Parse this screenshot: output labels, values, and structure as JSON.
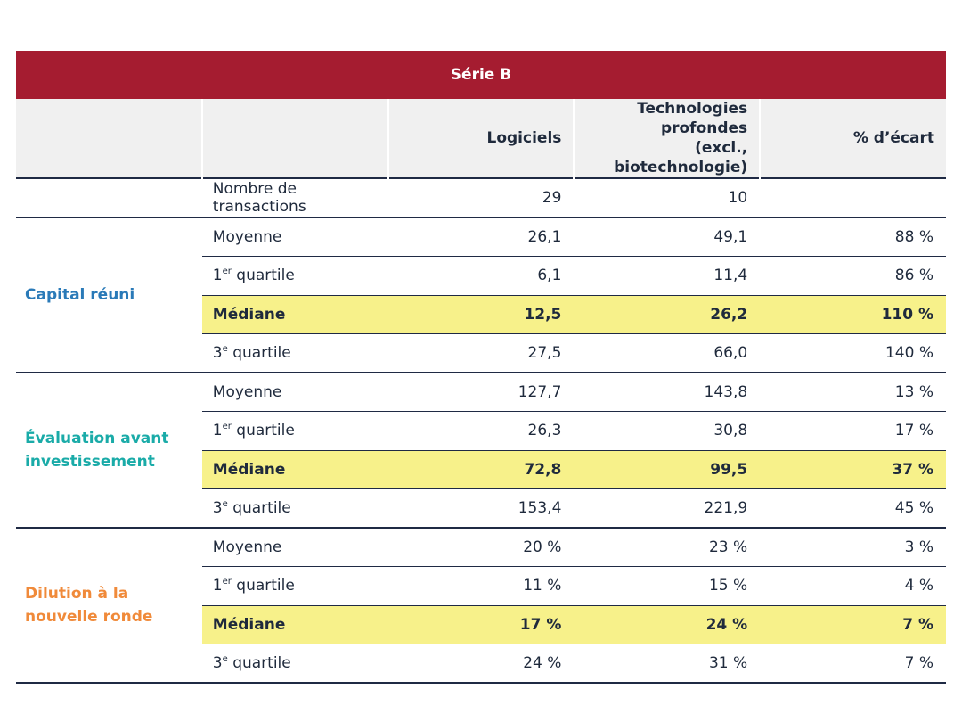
{
  "title": "Série B",
  "columns": [
    [
      "Logiciels"
    ],
    [
      "Technologies profondes",
      "(excl., biotechnologie)"
    ],
    [
      "% d’écart"
    ]
  ],
  "transactions": {
    "label": "Nombre de transactions",
    "values": [
      "29",
      "10",
      null
    ]
  },
  "groups": [
    {
      "label": "Capital réuni",
      "rows": [
        {
          "label": "Moyenne",
          "values": [
            "26,1",
            "49,1",
            "88 %"
          ]
        },
        {
          "label": {
            "number": "1",
            "sup": "er",
            "rest": "quartile"
          },
          "values": [
            "6,1",
            "11,4",
            "86 %"
          ]
        },
        {
          "label": "Médiane",
          "values": [
            "12,5",
            "26,2",
            "110 %"
          ],
          "highlight": true
        },
        {
          "label": {
            "number": "3",
            "sup": "e",
            "rest": "quartile"
          },
          "values": [
            "27,5",
            "66,0",
            "140 %"
          ]
        }
      ]
    },
    {
      "label": "Évaluation avant investissement",
      "rows": [
        {
          "label": "Moyenne",
          "values": [
            "127,7",
            "143,8",
            "13 %"
          ]
        },
        {
          "label": {
            "number": "1",
            "sup": "er",
            "rest": "quartile"
          },
          "values": [
            "26,3",
            "30,8",
            "17 %"
          ]
        },
        {
          "label": "Médiane",
          "values": [
            "72,8",
            "99,5",
            "37 %"
          ],
          "highlight": true
        },
        {
          "label": {
            "number": "3",
            "sup": "e",
            "rest": "quartile"
          },
          "values": [
            "153,4",
            "221,9",
            "45 %"
          ]
        }
      ]
    },
    {
      "label": "Dilution à la nouvelle ronde",
      "rows": [
        {
          "label": "Moyenne",
          "values": [
            "20 %",
            "23 %",
            "3 %"
          ]
        },
        {
          "label": {
            "number": "1",
            "sup": "er",
            "rest": "quartile"
          },
          "values": [
            "11 %",
            "15 %",
            "4 %"
          ]
        },
        {
          "label": "Médiane",
          "values": [
            "17 %",
            "24 %",
            "7 %"
          ],
          "highlight": true
        },
        {
          "label": {
            "number": "3",
            "sup": "e",
            "rest": "quartile"
          },
          "values": [
            "24 %",
            "31 %",
            "7 %"
          ]
        }
      ]
    }
  ]
}
